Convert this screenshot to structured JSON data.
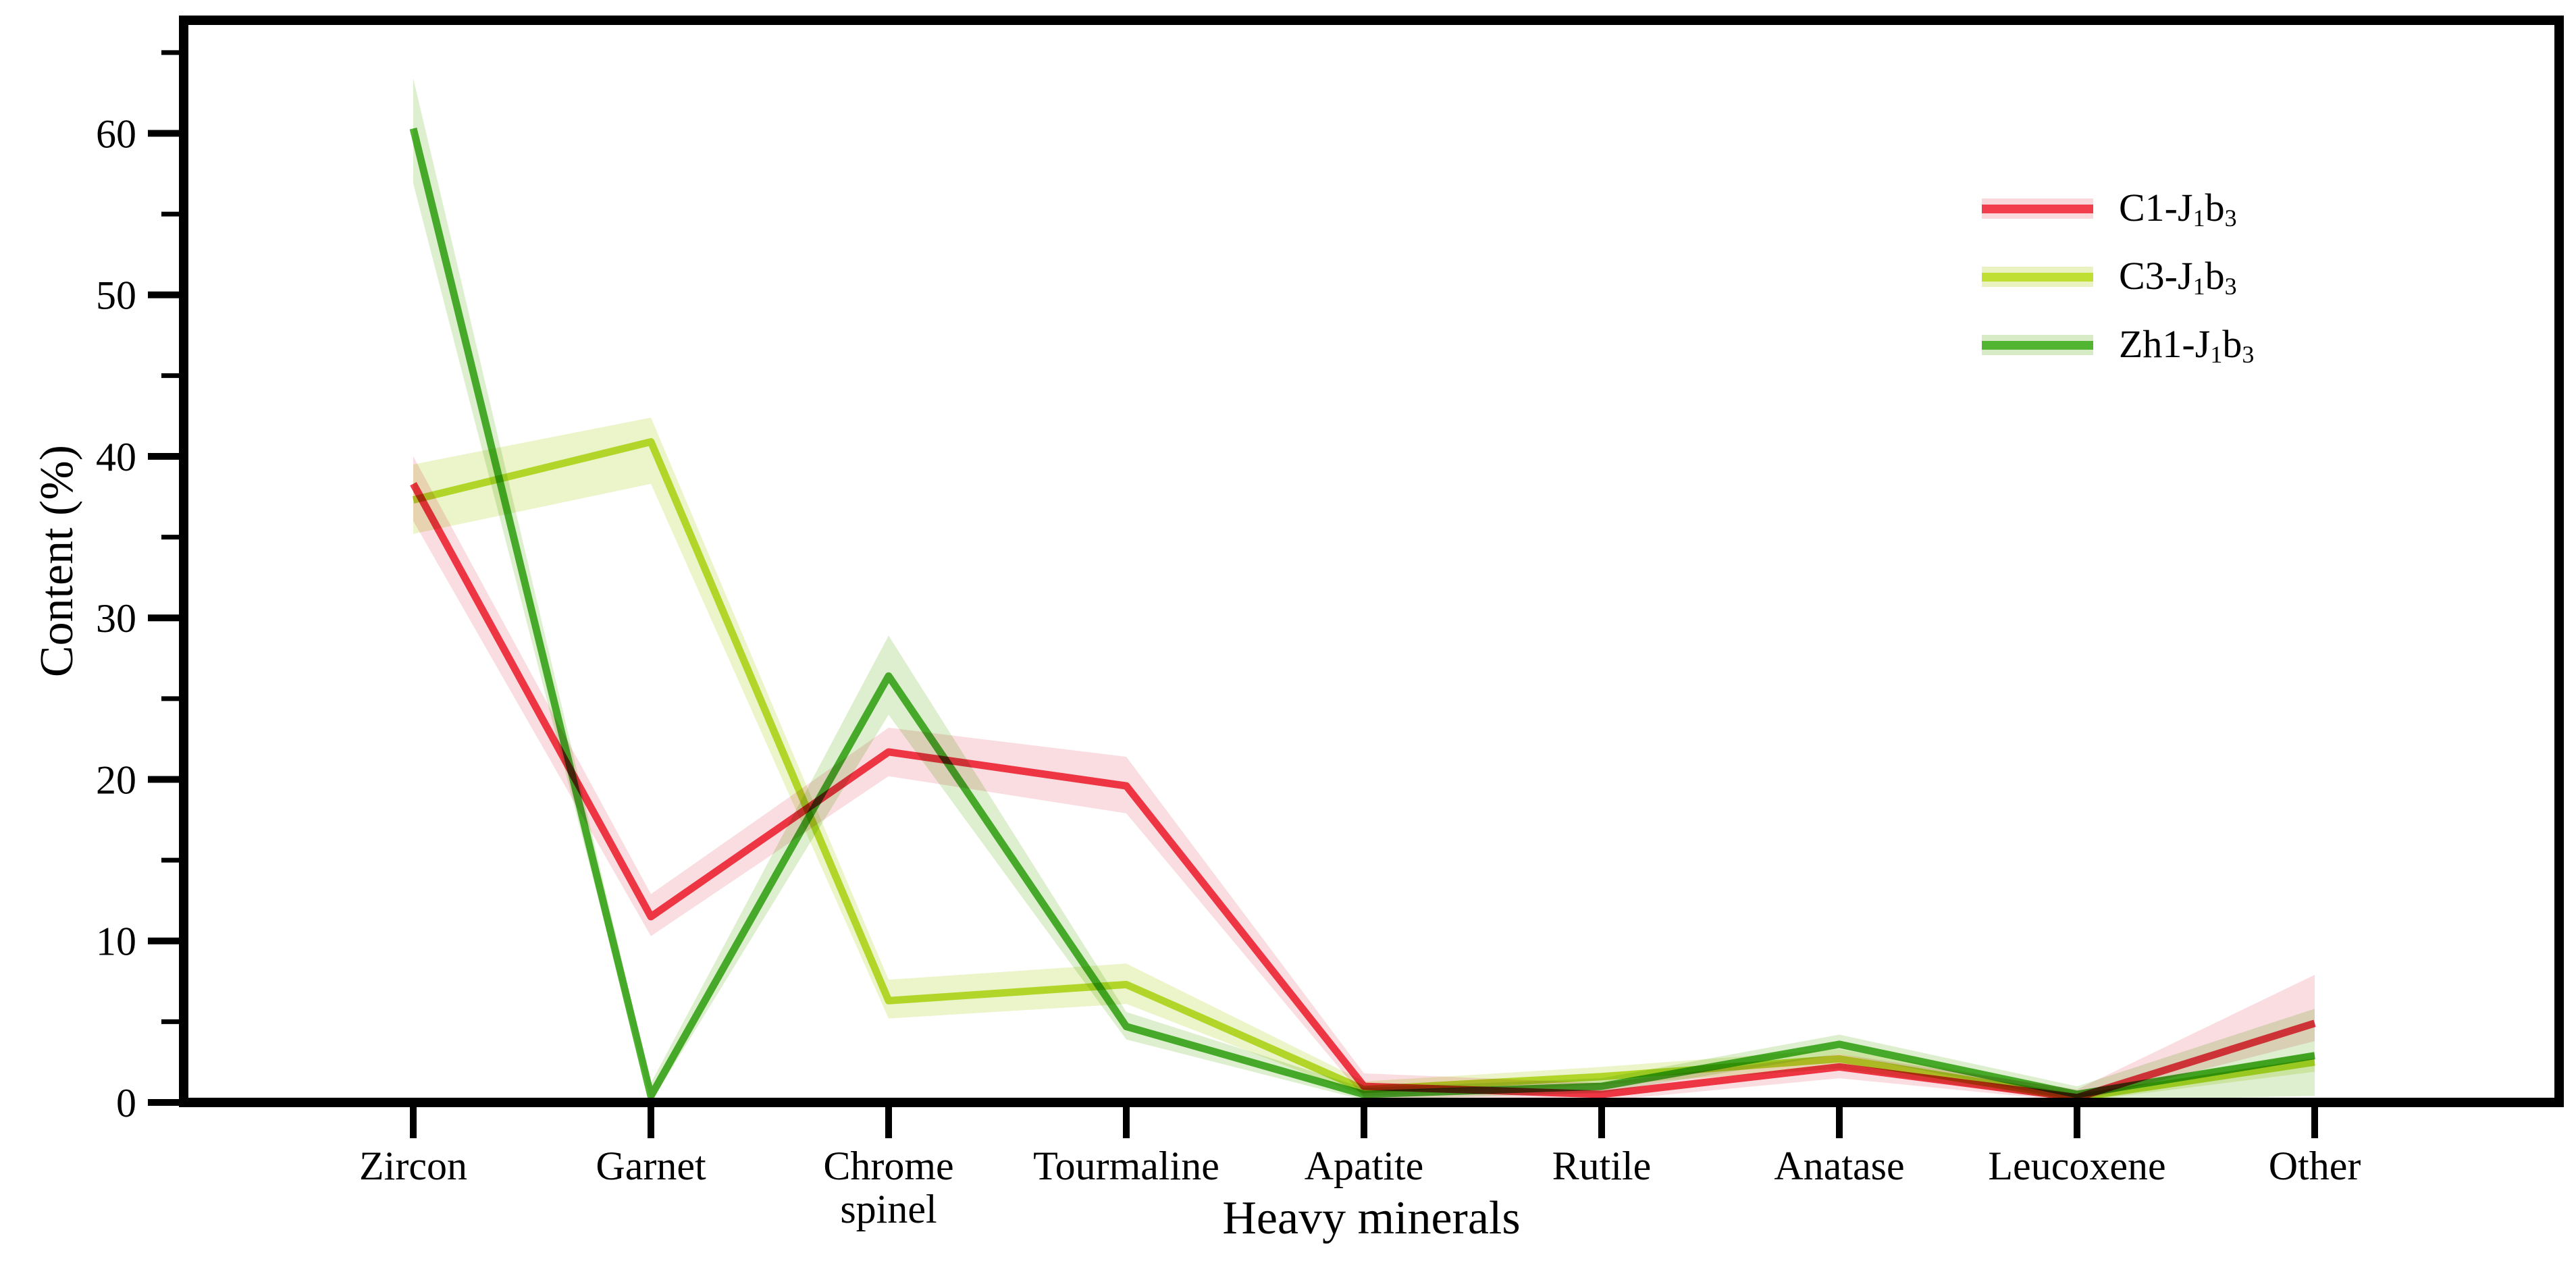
{
  "chart_data": {
    "type": "line",
    "title": "",
    "xlabel": "Heavy minerals",
    "ylabel": "Content (%)",
    "ylim": [
      0,
      67
    ],
    "grid": false,
    "legend_position": "upper right",
    "yticks_major": [
      0,
      10,
      20,
      30,
      40,
      50,
      60
    ],
    "yticks_minor": [
      5,
      15,
      25,
      35,
      45,
      55,
      65
    ],
    "categories": [
      "Zircon",
      "Garnet",
      "Chrome spinel",
      "Tourmaline",
      "Apatite",
      "Rutile",
      "Anatase",
      "Leucoxene",
      "Other"
    ],
    "xtick_lines": [
      [
        "Zircon"
      ],
      [
        "Garnet"
      ],
      [
        "Chrome",
        "spinel"
      ],
      [
        "Tourmaline"
      ],
      [
        "Apatite"
      ],
      [
        "Rutile"
      ],
      [
        "Anatase"
      ],
      [
        "Leucoxene"
      ],
      [
        "Other"
      ]
    ],
    "series": [
      {
        "name": "C1-J1b3",
        "label_parts": [
          {
            "t": "C1-J"
          },
          {
            "t": "1",
            "sub": true
          },
          {
            "t": "b"
          },
          {
            "t": "3",
            "sub": true
          }
        ],
        "color": "#f23d4c",
        "band_color": "#f9d7db",
        "values": [
          38.3,
          11.5,
          21.7,
          19.6,
          1.0,
          0.5,
          2.2,
          0.3,
          4.9
        ],
        "band_upper": [
          40.0,
          12.9,
          23.2,
          21.4,
          1.8,
          1.2,
          3.0,
          0.8,
          7.9
        ],
        "band_lower": [
          36.0,
          10.3,
          20.2,
          17.9,
          0.3,
          0.1,
          1.5,
          0.05,
          3.8
        ]
      },
      {
        "name": "C3-J1b3",
        "label_parts": [
          {
            "t": "C3-J"
          },
          {
            "t": "1",
            "sub": true
          },
          {
            "t": "b"
          },
          {
            "t": "3",
            "sub": true
          }
        ],
        "color": "#bfe033",
        "band_color": "#e9f2c0",
        "values": [
          37.3,
          40.9,
          6.3,
          7.3,
          0.8,
          1.6,
          2.7,
          0.3,
          2.5
        ],
        "band_upper": [
          39.5,
          42.4,
          7.6,
          8.6,
          1.3,
          2.2,
          3.3,
          0.7,
          3.1
        ],
        "band_lower": [
          35.2,
          38.3,
          5.2,
          6.1,
          0.4,
          1.1,
          2.1,
          0.05,
          1.9
        ]
      },
      {
        "name": "Zh1-J1b3",
        "label_parts": [
          {
            "t": "Zh1-J"
          },
          {
            "t": "1",
            "sub": true
          },
          {
            "t": "b"
          },
          {
            "t": "3",
            "sub": true
          }
        ],
        "color": "#51b532",
        "band_color": "#d7ecc6",
        "values": [
          60.3,
          0.4,
          26.4,
          4.7,
          0.5,
          1.0,
          3.6,
          0.5,
          2.9
        ],
        "band_upper": [
          63.4,
          1.2,
          28.9,
          5.6,
          0.9,
          1.5,
          4.2,
          1.0,
          5.8
        ],
        "band_lower": [
          56.9,
          0.0,
          24.0,
          3.9,
          0.15,
          0.6,
          3.0,
          0.1,
          0.4
        ]
      }
    ]
  },
  "frame": {
    "axis_color": "#000000",
    "background": "#ffffff"
  }
}
